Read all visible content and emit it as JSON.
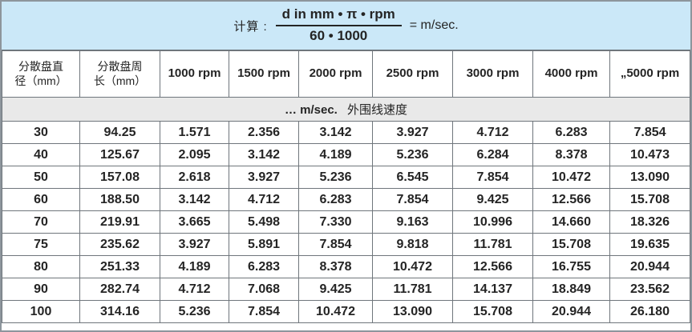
{
  "formula": {
    "prefix": "计算 :",
    "numerator": "d in mm • π • rpm",
    "denominator": "60 • 1000",
    "result": "= m/sec."
  },
  "table": {
    "columns": [
      "分散盘直\n径（mm）",
      "分散盘周\n长（mm）",
      "1000 rpm",
      "1500 rpm",
      "2000 rpm",
      "2500 rpm",
      "3000 rpm",
      "4000 rpm",
      "„5000 rpm"
    ],
    "subtitle": {
      "bold": "… m/sec.",
      "regular": "外围线速度"
    },
    "rows": [
      [
        "30",
        "94.25",
        "1.571",
        "2.356",
        "3.142",
        "3.927",
        "4.712",
        "6.283",
        "7.854"
      ],
      [
        "40",
        "125.67",
        "2.095",
        "3.142",
        "4.189",
        "5.236",
        "6.284",
        "8.378",
        "10.473"
      ],
      [
        "50",
        "157.08",
        "2.618",
        "3.927",
        "5.236",
        "6.545",
        "7.854",
        "10.472",
        "13.090"
      ],
      [
        "60",
        "188.50",
        "3.142",
        "4.712",
        "6.283",
        "7.854",
        "9.425",
        "12.566",
        "15.708"
      ],
      [
        "70",
        "219.91",
        "3.665",
        "5.498",
        "7.330",
        "9.163",
        "10.996",
        "14.660",
        "18.326"
      ],
      [
        "75",
        "235.62",
        "3.927",
        "5.891",
        "7.854",
        "9.818",
        "11.781",
        "15.708",
        "19.635"
      ],
      [
        "80",
        "251.33",
        "4.189",
        "6.283",
        "8.378",
        "10.472",
        "12.566",
        "16.755",
        "20.944"
      ],
      [
        "90",
        "282.74",
        "4.712",
        "7.068",
        "9.425",
        "11.781",
        "14.137",
        "18.849",
        "23.562"
      ],
      [
        "100",
        "314.16",
        "5.236",
        "7.854",
        "10.472",
        "13.090",
        "15.708",
        "20.944",
        "26.180"
      ]
    ]
  },
  "colors": {
    "banner_bg": "#cbe8f8",
    "subtitle_bg": "#e9e9e9",
    "border": "#6f767c",
    "text": "#242424"
  }
}
